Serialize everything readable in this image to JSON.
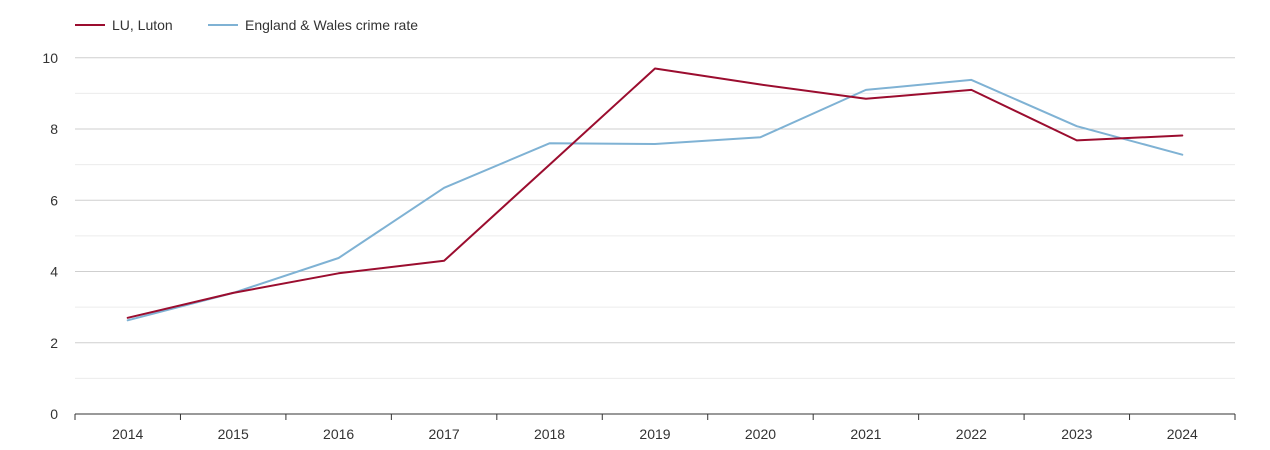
{
  "chart_data": {
    "type": "line",
    "title": "",
    "xlabel": "",
    "ylabel": "",
    "categories": [
      "2014",
      "2015",
      "2016",
      "2017",
      "2018",
      "2019",
      "2020",
      "2021",
      "2022",
      "2023",
      "2024"
    ],
    "y_ticks": [
      "0",
      "2",
      "4",
      "6",
      "8",
      "10"
    ],
    "ylim": [
      0,
      10.5
    ],
    "grid": true,
    "legend_position": "top-left",
    "series": [
      {
        "name": "LU, Luton",
        "color": "#9b0d2f",
        "values": [
          2.7,
          3.4,
          3.95,
          4.3,
          7.0,
          9.7,
          9.25,
          8.85,
          9.1,
          7.68,
          7.82
        ]
      },
      {
        "name": "England & Wales crime rate",
        "color": "#7fb2d4",
        "values": [
          2.63,
          3.4,
          4.38,
          6.35,
          7.6,
          7.58,
          7.77,
          9.1,
          9.38,
          8.08,
          7.28
        ]
      }
    ]
  }
}
